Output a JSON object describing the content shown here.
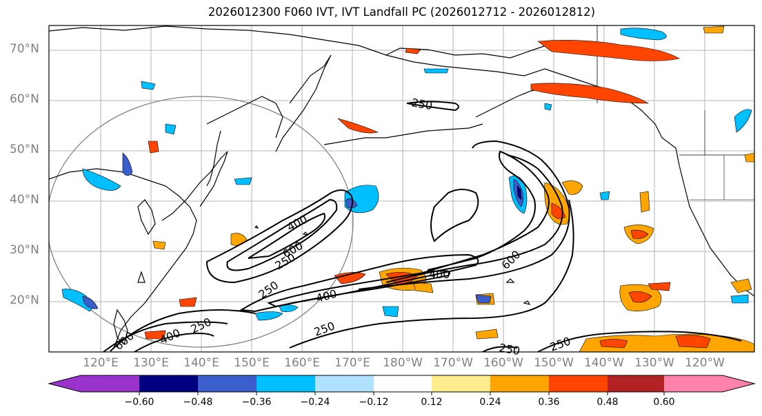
{
  "title": "2026012300 F060 IVT, IVT Landfall PC (2026012712 - 2026012812)",
  "lat_labels": [
    "70°N",
    "60°N",
    "50°N",
    "40°N",
    "30°N",
    "20°N"
  ],
  "lon_labels": [
    "120°E",
    "130°E",
    "140°E",
    "150°E",
    "160°E",
    "170°E",
    "180°W",
    "170°W",
    "160°W",
    "150°W",
    "140°W",
    "130°W",
    "120°W"
  ],
  "colorbar": {
    "colors": [
      "#9933cc",
      "#000080",
      "#3a5fcd",
      "#00bfff",
      "#b0e2ff",
      "#ffffff",
      "#ffec8b",
      "#ffa500",
      "#ff4500",
      "#b22222",
      "#ff82ab"
    ],
    "ticks": [
      "−0.60",
      "−0.48",
      "−0.36",
      "−0.24",
      "−0.12",
      "0.12",
      "0.24",
      "0.36",
      "0.48",
      "0.60"
    ]
  },
  "contour_labels": [
    "250",
    "400",
    "600",
    "250",
    "400",
    "600",
    "400",
    "250",
    "250",
    "400",
    "600",
    "250",
    "250",
    "250"
  ],
  "legend_colors": {
    "positive_1": "#ffa500",
    "positive_2": "#ff4500",
    "positive_3": "#b22222",
    "negative_1": "#00bfff",
    "negative_2": "#3a5fcd",
    "negative_3": "#000080"
  }
}
